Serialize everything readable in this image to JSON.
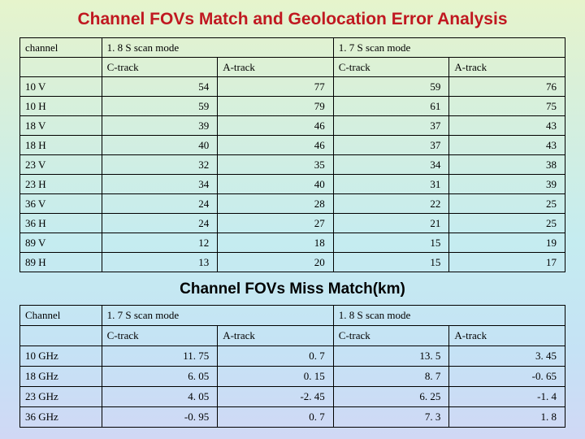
{
  "page": {
    "title": "Channel FOVs Match and Geolocation Error Analysis",
    "subtitle": "Channel FOVs Miss Match(km)"
  },
  "table1": {
    "head": {
      "channel": "channel",
      "mode_a": "1. 8 S scan mode",
      "mode_b": "1. 7 S scan mode",
      "ctrack": "C-track",
      "atrack": "A-track"
    },
    "rows": [
      {
        "ch": "10 V",
        "a": "54",
        "b": "77",
        "c": "59",
        "d": "76"
      },
      {
        "ch": "10 H",
        "a": "59",
        "b": "79",
        "c": "61",
        "d": "75"
      },
      {
        "ch": "18 V",
        "a": "39",
        "b": "46",
        "c": "37",
        "d": "43"
      },
      {
        "ch": "18 H",
        "a": "40",
        "b": "46",
        "c": "37",
        "d": "43"
      },
      {
        "ch": "23 V",
        "a": "32",
        "b": "35",
        "c": "34",
        "d": "38"
      },
      {
        "ch": "23 H",
        "a": "34",
        "b": "40",
        "c": "31",
        "d": "39"
      },
      {
        "ch": "36 V",
        "a": "24",
        "b": "28",
        "c": "22",
        "d": "25"
      },
      {
        "ch": "36 H",
        "a": "24",
        "b": "27",
        "c": "21",
        "d": "25"
      },
      {
        "ch": "89 V",
        "a": "12",
        "b": "18",
        "c": "15",
        "d": "19"
      },
      {
        "ch": "89 H",
        "a": "13",
        "b": "20",
        "c": "15",
        "d": "17"
      }
    ]
  },
  "table2": {
    "head": {
      "channel": "Channel",
      "mode_a": "1. 7 S scan mode",
      "mode_b": "1. 8 S scan mode",
      "ctrack": "C-track",
      "atrack": "A-track"
    },
    "rows": [
      {
        "ch": "10 GHz",
        "a": "11. 75",
        "b": "0. 7",
        "c": "13. 5",
        "d": "3. 45"
      },
      {
        "ch": "18 GHz",
        "a": "6. 05",
        "b": "0. 15",
        "c": "8. 7",
        "d": "-0. 65"
      },
      {
        "ch": "23 GHz",
        "a": "4. 05",
        "b": "-2. 45",
        "c": "6. 25",
        "d": "-1. 4"
      },
      {
        "ch": "36 GHz",
        "a": "-0. 95",
        "b": "0. 7",
        "c": "7. 3",
        "d": "1. 8"
      }
    ]
  }
}
